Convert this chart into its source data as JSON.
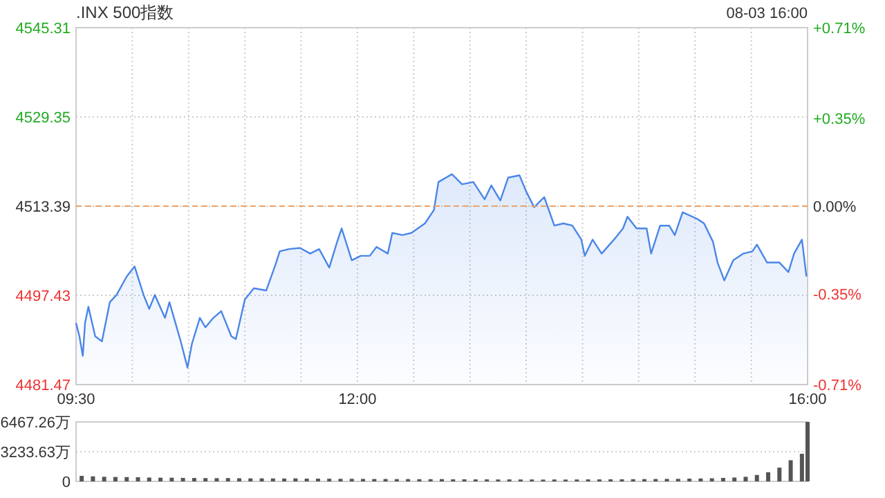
{
  "chart_data": [
    {
      "type": "area",
      "title": ".INX 500指数",
      "annotations": [
        "08-03 16:00"
      ],
      "color": "#4a86e8",
      "xlim": [
        9.5,
        16
      ],
      "xticks": [
        {
          "value": 9.5,
          "label": "09:30"
        },
        {
          "value": 10,
          "label": null
        },
        {
          "value": 10.5,
          "label": null
        },
        {
          "value": 11,
          "label": null
        },
        {
          "value": 11.5,
          "label": null
        },
        {
          "value": 12,
          "label": "12:00"
        },
        {
          "value": 12.5,
          "label": null
        },
        {
          "value": 13,
          "label": null
        },
        {
          "value": 13.5,
          "label": null
        },
        {
          "value": 14,
          "label": null
        },
        {
          "value": 14.5,
          "label": null
        },
        {
          "value": 15,
          "label": null
        },
        {
          "value": 15.5,
          "label": null
        },
        {
          "value": 16,
          "label": "16:00"
        }
      ],
      "ylim": [
        4481.47,
        4545.31
      ],
      "yticks": [
        4481.47,
        4497.43,
        4513.39,
        4529.35,
        4545.31
      ],
      "y2lim": [
        -0.71,
        0.71
      ],
      "y2ticks": [
        {
          "value": -0.71,
          "label": "-0.71%"
        },
        {
          "value": -0.35,
          "label": "-0.35%"
        },
        {
          "value": 0,
          "label": "0.00%"
        },
        {
          "value": 0.35,
          "label": "+0.35%"
        },
        {
          "value": 0.71,
          "label": "+0.71%"
        }
      ],
      "ref_lines": [
        {
          "axis": "y",
          "value": 4513.39,
          "color": "#f0a060",
          "line_style": "dashed"
        }
      ],
      "grid": true,
      "x": [
        9.5,
        9.53,
        9.56,
        9.58,
        9.61,
        9.67,
        9.73,
        9.8,
        9.86,
        9.95,
        10.02,
        10.1,
        10.15,
        10.2,
        10.29,
        10.33,
        10.43,
        10.49,
        10.53,
        10.6,
        10.65,
        10.72,
        10.79,
        10.88,
        10.92,
        11.0,
        11.08,
        11.19,
        11.27,
        11.31,
        11.39,
        11.49,
        11.58,
        11.66,
        11.75,
        11.82,
        11.86,
        11.95,
        12.03,
        12.11,
        12.17,
        12.27,
        12.31,
        12.4,
        12.48,
        12.6,
        12.68,
        12.72,
        12.84,
        12.93,
        13.03,
        13.13,
        13.19,
        13.27,
        13.34,
        13.44,
        13.5,
        13.57,
        13.66,
        13.75,
        13.83,
        13.91,
        13.99,
        14.02,
        14.09,
        14.17,
        14.28,
        14.36,
        14.4,
        14.48,
        14.57,
        14.61,
        14.69,
        14.77,
        14.82,
        14.89,
        15.02,
        15.08,
        15.16,
        15.2,
        15.26,
        15.34,
        15.43,
        15.51,
        15.55,
        15.64,
        15.75,
        15.83,
        15.88,
        15.95,
        15.99
      ],
      "values": [
        4492.5,
        4490.1,
        4486.6,
        4492.5,
        4495.4,
        4490.1,
        4489.2,
        4496.2,
        4497.5,
        4500.8,
        4502.6,
        4497.5,
        4495.0,
        4497.5,
        4493.4,
        4496.2,
        4489.2,
        4484.5,
        4488.8,
        4493.4,
        4491.7,
        4493.4,
        4494.6,
        4490.1,
        4489.6,
        4496.7,
        4498.7,
        4498.3,
        4502.8,
        4505.3,
        4505.7,
        4505.9,
        4504.9,
        4505.7,
        4502.4,
        4507.0,
        4509.4,
        4503.7,
        4504.5,
        4504.5,
        4506.1,
        4504.9,
        4508.6,
        4508.2,
        4508.6,
        4510.3,
        4512.7,
        4517.7,
        4519.1,
        4517.3,
        4517.7,
        4514.6,
        4517.1,
        4514.4,
        4518.5,
        4518.9,
        4516.0,
        4513.2,
        4515.0,
        4509.9,
        4510.3,
        4509.9,
        4507.4,
        4504.5,
        4507.4,
        4504.9,
        4507.4,
        4509.4,
        4511.5,
        4509.4,
        4509.4,
        4504.9,
        4509.9,
        4509.9,
        4508.2,
        4512.3,
        4511.1,
        4510.3,
        4507.0,
        4503.3,
        4500.1,
        4503.7,
        4504.9,
        4505.3,
        4506.5,
        4503.3,
        4503.3,
        4501.6,
        4504.9,
        4507.4,
        4500.8
      ]
    },
    {
      "type": "bar",
      "color": "#555555",
      "xlim": [
        9.5,
        16
      ],
      "tick_labels": "y",
      "grid": "y",
      "ylim": [
        0,
        6467.26
      ],
      "yticks": [
        0,
        {
          "value": 3233.63,
          "label": "3233.63万"
        },
        {
          "value": 6467.26,
          "label": "6467.26万"
        }
      ],
      "x": [
        9.55,
        9.65,
        9.75,
        9.85,
        9.95,
        10.05,
        10.15,
        10.25,
        10.35,
        10.45,
        10.55,
        10.65,
        10.75,
        10.85,
        10.95,
        11.05,
        11.15,
        11.25,
        11.35,
        11.45,
        11.55,
        11.65,
        11.75,
        11.85,
        11.95,
        12.05,
        12.15,
        12.25,
        12.35,
        12.45,
        12.55,
        12.65,
        12.75,
        12.85,
        12.95,
        13.05,
        13.15,
        13.25,
        13.35,
        13.45,
        13.55,
        13.65,
        13.75,
        13.85,
        13.95,
        14.05,
        14.15,
        14.25,
        14.35,
        14.45,
        14.55,
        14.65,
        14.75,
        14.85,
        14.95,
        15.05,
        15.15,
        15.25,
        15.35,
        15.45,
        15.55,
        15.65,
        15.75,
        15.85,
        15.95,
        16
      ],
      "values": [
        600,
        550,
        500,
        480,
        470,
        450,
        420,
        400,
        400,
        380,
        370,
        360,
        350,
        360,
        340,
        330,
        330,
        320,
        310,
        330,
        300,
        300,
        290,
        280,
        280,
        270,
        260,
        260,
        250,
        250,
        240,
        240,
        250,
        230,
        230,
        220,
        220,
        210,
        220,
        210,
        210,
        200,
        210,
        200,
        210,
        220,
        220,
        230,
        230,
        240,
        250,
        260,
        270,
        280,
        300,
        320,
        340,
        380,
        420,
        500,
        700,
        1000,
        1500,
        2300,
        3000,
        6467.26
      ]
    }
  ]
}
